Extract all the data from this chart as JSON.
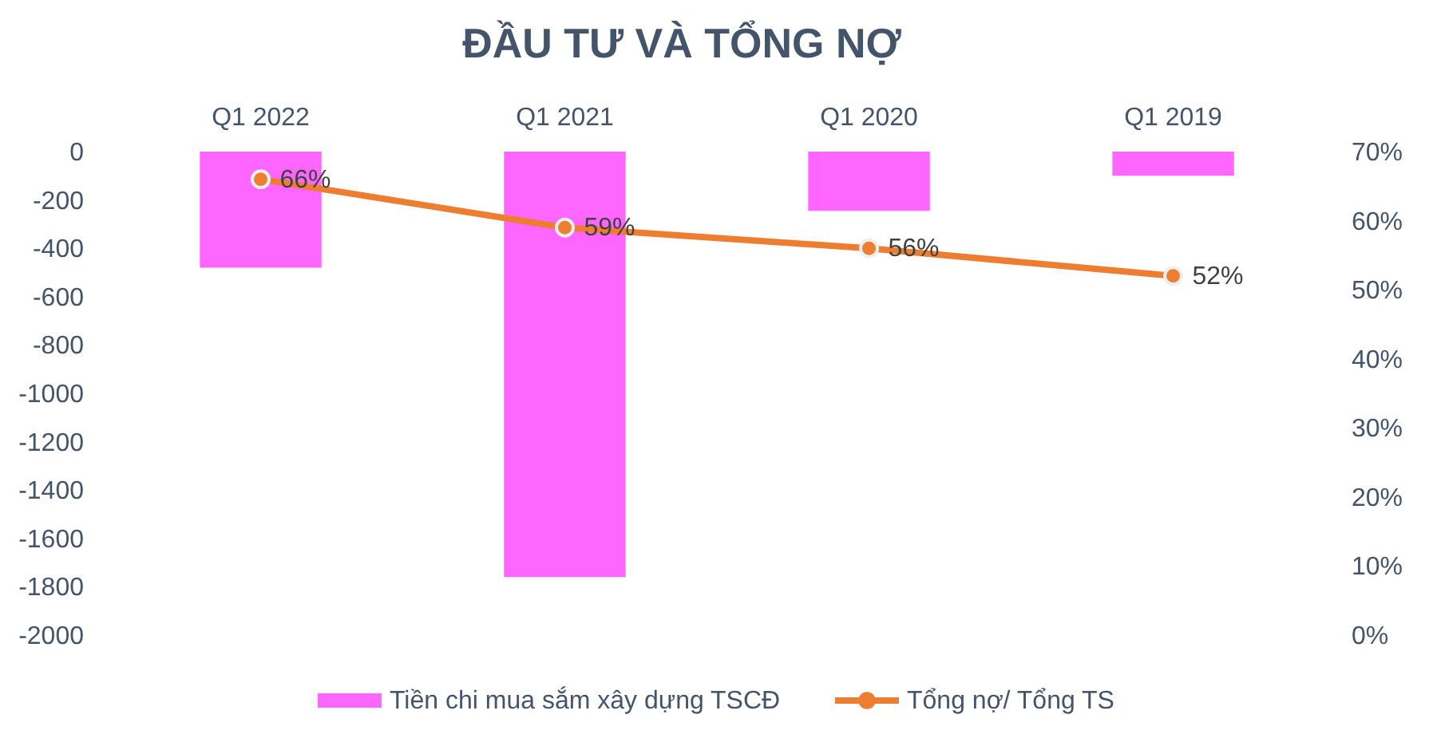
{
  "chart_data": {
    "type": "bar",
    "title": "ĐẦU TƯ VÀ TỔNG NỢ",
    "categories": [
      "Q1 2022",
      "Q1 2021",
      "Q1 2020",
      "Q1 2019"
    ],
    "series": [
      {
        "name": "Tiền chi mua sắm xây dựng TSCĐ",
        "color": "#ff66ff",
        "values": [
          -480,
          -1760,
          -245,
          -100
        ]
      },
      {
        "name": "Tổng nợ/ Tổng TS",
        "type": "line",
        "axis": "y2",
        "color": "#ed7d31",
        "values": [
          66,
          59,
          56,
          52
        ],
        "value_labels": [
          "66%",
          "59%",
          "56%",
          "52%"
        ]
      }
    ],
    "ylim": [
      -2000,
      0
    ],
    "yticks": [
      -2000,
      -1800,
      -1600,
      -1400,
      -1200,
      -1000,
      -800,
      -600,
      -400,
      -200,
      0
    ],
    "y2lim": [
      0,
      70
    ],
    "y2ticks": [
      {
        "value": 0,
        "label": "0%"
      },
      {
        "value": 10,
        "label": "10%"
      },
      {
        "value": 20,
        "label": "20%"
      },
      {
        "value": 30,
        "label": "30%"
      },
      {
        "value": 40,
        "label": "40%"
      },
      {
        "value": 50,
        "label": "50%"
      },
      {
        "value": 60,
        "label": "60%"
      },
      {
        "value": 70,
        "label": "70%"
      }
    ],
    "grid": false,
    "legend": "bottom",
    "marker": "circle",
    "line_style": "solid"
  }
}
